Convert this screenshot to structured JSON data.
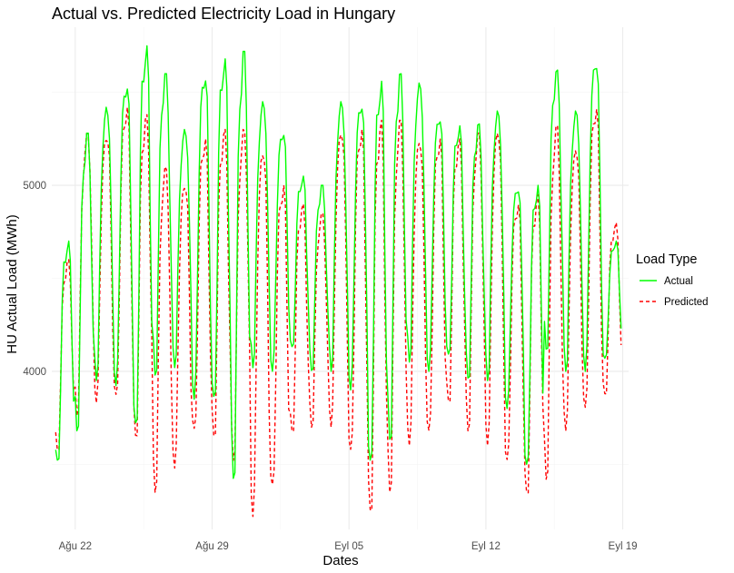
{
  "chart_data": {
    "type": "line",
    "title": "Actual vs. Predicted Electricity Load in Hungary",
    "xlabel": "Dates",
    "ylabel": "HU Actual Load (MWh)",
    "x_tick_labels": [
      "Ağu 22",
      "Ağu 29",
      "Eyl 05",
      "Eyl 12",
      "Eyl 19"
    ],
    "y_tick_labels": [
      "4000",
      "5000"
    ],
    "y_ticks": [
      4000,
      5000
    ],
    "ylim": [
      3150,
      5850
    ],
    "x_range_days": [
      -1.2,
      28.3
    ],
    "grid": true,
    "legend": {
      "title": "Load Type",
      "position": "right",
      "entries": [
        {
          "label": "Actual",
          "color": "#00ff00",
          "dash": "solid"
        },
        {
          "label": "Predicted",
          "color": "#ff0000",
          "dash": "dashed"
        }
      ]
    },
    "hours_per_point": 2,
    "series": [
      {
        "name": "Actual",
        "color": "#00ff00",
        "day_profile": {
          "min": [
            3480,
            3680,
            3950,
            3920,
            3650,
            3980,
            4020,
            3850,
            3800,
            3420,
            4020,
            4000,
            4100,
            4000,
            4000,
            3900,
            3450,
            3620,
            4050,
            4000,
            4050,
            3950,
            3950,
            3800,
            3450,
            4100,
            4000,
            4000,
            4050
          ],
          "max": [
            4700,
            5280,
            5420,
            5550,
            5750,
            5600,
            5300,
            5600,
            5680,
            5720,
            5450,
            5300,
            5050,
            5000,
            5450,
            5450,
            5560,
            5600,
            5550,
            5380,
            5320,
            5330,
            5400,
            5000,
            5000,
            5620,
            5400,
            5680,
            4700
          ]
        }
      },
      {
        "name": "Predicted",
        "color": "#ff0000",
        "day_profile": {
          "min": [
            3560,
            3760,
            3830,
            3830,
            3620,
            3350,
            3480,
            3650,
            3620,
            3520,
            3220,
            3350,
            3650,
            3700,
            3700,
            3540,
            3200,
            3350,
            3600,
            3650,
            3800,
            3680,
            3600,
            3500,
            3300,
            3420,
            3680,
            3780,
            3850
          ],
          "max": [
            4600,
            5280,
            5280,
            5420,
            5380,
            5100,
            5020,
            5250,
            5300,
            5300,
            5200,
            5000,
            4900,
            4850,
            5300,
            5300,
            5350,
            5350,
            5250,
            5250,
            5250,
            5280,
            5300,
            4900,
            4950,
            5320,
            5200,
            5420,
            4800
          ]
        }
      }
    ]
  }
}
